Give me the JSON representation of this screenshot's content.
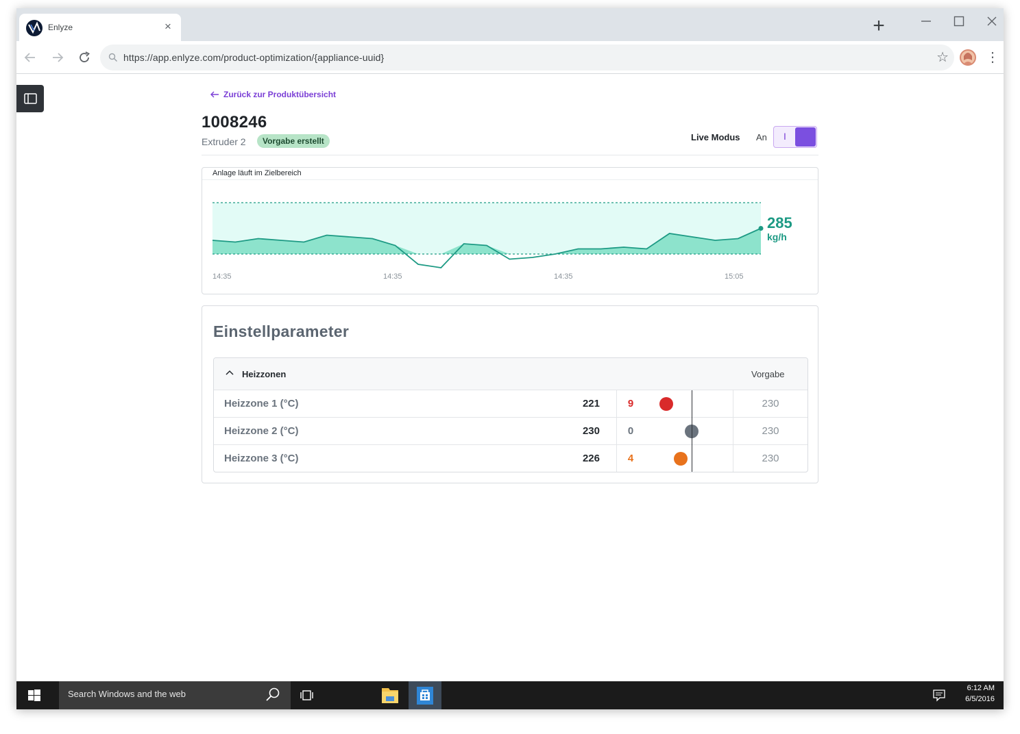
{
  "browser": {
    "tab_title": "Enlyze",
    "url": "https://app.enlyze.com/product-optimization/{appliance-uuid}"
  },
  "page": {
    "back_link": "Zurück zur Produktübersicht",
    "product_id": "1008246",
    "machine": "Extruder 2",
    "badge": "Vorgabe erstellt",
    "live_label": "Live Modus",
    "live_state": "An",
    "live_toggle_glyph": "I",
    "live_on": true
  },
  "chart": {
    "status": "Anlage läuft im Zielbereich",
    "current_value": "285",
    "current_unit": "kg/h",
    "x_labels": [
      "14:35",
      "14:35",
      "14:35",
      "15:05"
    ]
  },
  "chart_data": {
    "type": "line",
    "title": "Anlage läuft im Zielbereich",
    "x_tick_labels": [
      "14:35",
      "14:35",
      "14:35",
      "15:05"
    ],
    "target_band": {
      "lower": 270,
      "upper": 300
    },
    "values": [
      278,
      277,
      279,
      278,
      277,
      281,
      280,
      279,
      275,
      264,
      262,
      276,
      275,
      267,
      268,
      270,
      273,
      273,
      274,
      273,
      282,
      280,
      278,
      279,
      285
    ],
    "last_value": 285,
    "unit": "kg/h",
    "colors": {
      "line": "#1d9a84",
      "band": "#e2fbf6",
      "fill": "#8de3cc"
    }
  },
  "params": {
    "title": "Einstellparameter",
    "group": "Heizzonen",
    "target_header": "Vorgabe",
    "rows": [
      {
        "name": "Heizzone 1 (°C)",
        "value": "221",
        "deviation": "9",
        "target": "230",
        "status": "high",
        "color": "#d92a2a",
        "offset": -9
      },
      {
        "name": "Heizzone 2 (°C)",
        "value": "230",
        "deviation": "0",
        "target": "230",
        "status": "ok",
        "color": "#6a737d",
        "offset": 0
      },
      {
        "name": "Heizzone 3 (°C)",
        "value": "226",
        "deviation": "4",
        "target": "230",
        "status": "medium",
        "color": "#e8721c",
        "offset": -4
      }
    ]
  },
  "taskbar": {
    "search_placeholder": "Search Windows and the web",
    "time": "6:12 AM",
    "date": "6/5/2016"
  }
}
